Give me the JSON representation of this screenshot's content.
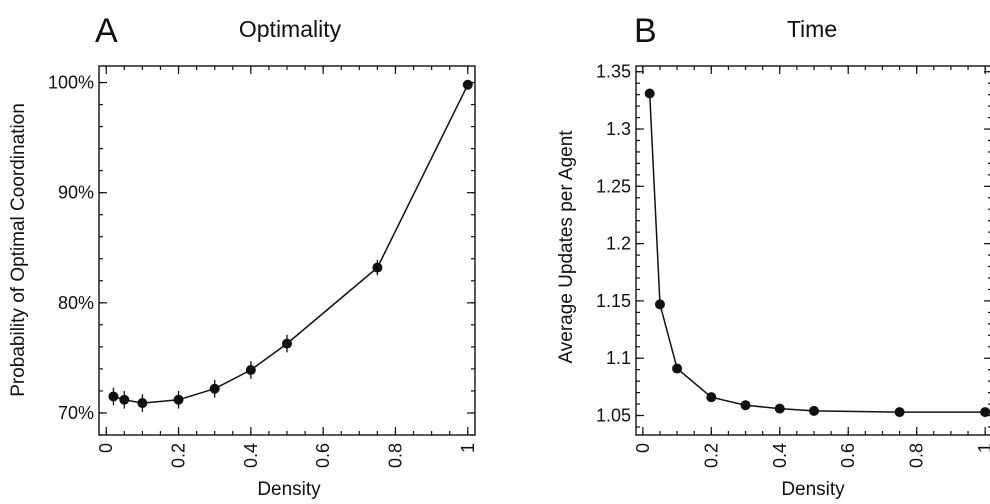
{
  "chart_data": [
    {
      "type": "line",
      "panel": "A",
      "title": "Optimality",
      "xlabel": "Density",
      "ylabel": "Probability of Optimal Coordination",
      "xlim": [
        -0.02,
        1.02
      ],
      "ylim": [
        0.68,
        1.015
      ],
      "xticks": [
        0,
        0.2,
        0.4,
        0.6,
        0.8,
        1
      ],
      "xtick_labels": [
        "0",
        "0.2",
        "0.4",
        "0.6",
        "0.8",
        "1"
      ],
      "yticks": [
        0.7,
        0.8,
        0.9,
        1.0
      ],
      "ytick_labels": [
        "70%",
        "80%",
        "90%",
        "100%"
      ],
      "y_minor_step": 0.02,
      "x_minor_step": 0.05,
      "series": [
        {
          "x": [
            0.02,
            0.05,
            0.1,
            0.2,
            0.3,
            0.4,
            0.5,
            0.75,
            1.0
          ],
          "y": [
            0.715,
            0.712,
            0.709,
            0.712,
            0.722,
            0.739,
            0.763,
            0.832,
            0.998
          ],
          "err": [
            0.008,
            0.008,
            0.008,
            0.008,
            0.008,
            0.008,
            0.008,
            0.007,
            0.003
          ]
        }
      ]
    },
    {
      "type": "line",
      "panel": "B",
      "title": "Time",
      "xlabel": "Density",
      "ylabel": "Average Updates per Agent",
      "xlim": [
        -0.02,
        1.02
      ],
      "ylim": [
        1.033,
        1.355
      ],
      "xticks": [
        0,
        0.2,
        0.4,
        0.6,
        0.8,
        1
      ],
      "xtick_labels": [
        "0",
        "0.2",
        "0.4",
        "0.6",
        "0.8",
        "1"
      ],
      "yticks": [
        1.05,
        1.1,
        1.15,
        1.2,
        1.25,
        1.3,
        1.35
      ],
      "ytick_labels": [
        "1.05",
        "1.1",
        "1.15",
        "1.2",
        "1.25",
        "1.3",
        "1.35"
      ],
      "y_minor_step": 0.01,
      "x_minor_step": 0.05,
      "series": [
        {
          "x": [
            0.02,
            0.05,
            0.1,
            0.2,
            0.3,
            0.4,
            0.5,
            0.75,
            1.0
          ],
          "y": [
            1.331,
            1.147,
            1.091,
            1.066,
            1.059,
            1.056,
            1.054,
            1.053,
            1.053
          ],
          "err": [
            0,
            0,
            0,
            0,
            0,
            0,
            0,
            0,
            0
          ]
        }
      ]
    }
  ]
}
